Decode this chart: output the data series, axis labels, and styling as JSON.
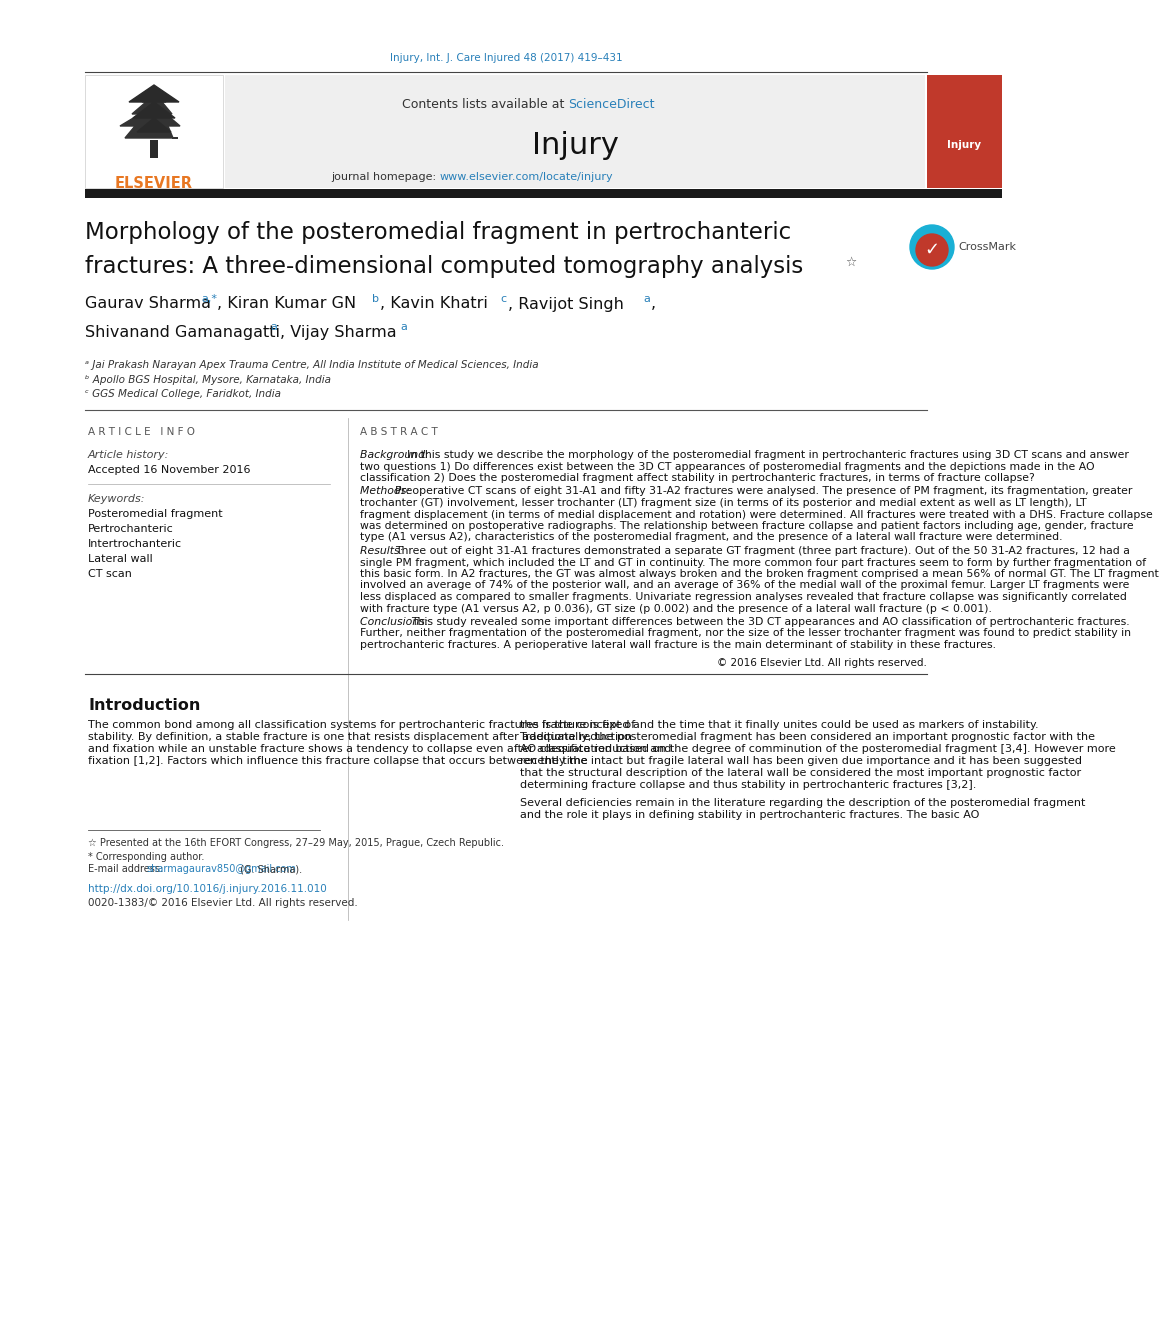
{
  "journal_ref": "Injury, Int. J. Care Injured 48 (2017) 419–431",
  "journal_name": "Injury",
  "contents_text": "Contents lists available at ScienceDirect",
  "title_line1": "Morphology of the posteromedial fragment in pertrochanteric",
  "title_line2": "fractures: A three-dimensional computed tomography analysis",
  "title_star": "☆",
  "affil_a": "ᵃ Jai Prakash Narayan Apex Trauma Centre, All India Institute of Medical Sciences, India",
  "affil_b": "ᵇ Apollo BGS Hospital, Mysore, Karnataka, India",
  "affil_c": "ᶜ GGS Medical College, Faridkot, India",
  "article_info_header": "A R T I C L E   I N F O",
  "abstract_header": "A B S T R A C T",
  "history_label": "Article history:",
  "history_date": "Accepted 16 November 2016",
  "keywords_label": "Keywords:",
  "keywords": [
    "Posteromedial fragment",
    "Pertrochanteric",
    "Intertrochanteric",
    "Lateral wall",
    "CT scan"
  ],
  "abstract_background": "Background: In this study we describe the morphology of the posteromedial fragment in pertrochanteric fractures using 3D CT scans and answer two questions 1) Do differences exist between the 3D CT appearances of posteromedial fragments and the depictions made in the AO classification 2) Does the posteromedial fragment affect stability in pertrochanteric fractures, in terms of fracture collapse?",
  "abstract_methods": "Methods: Preoperative CT scans of eight 31-A1 and fifty 31-A2 fractures were analysed. The presence of PM fragment, its fragmentation, greater trochanter (GT) involvement, lesser trochanter (LT) fragment size (in terms of its posterior and medial extent as well as LT length), LT fragment displacement (in terms of medial displacement and rotation) were determined. All fractures were treated with a DHS. Fracture collapse was determined on postoperative radiographs. The relationship between fracture collapse and patient factors including age, gender, fracture type (A1 versus A2), characteristics of the posteromedial fragment, and the presence of a lateral wall fracture were determined.",
  "abstract_results": "Results: Three out of eight 31-A1 fractures demonstrated a separate GT fragment (three part fracture). Out of the 50 31-A2 fractures, 12 had a single PM fragment, which included the LT and GT in continuity. The more common four part fractures seem to form by further fragmentation of this basic form. In A2 fractures, the GT was almost always broken and the broken fragment comprised a mean 56% of normal GT. The LT fragment involved an average of 74% of the posterior wall, and an average of 36% of the medial wall of the proximal femur. Larger LT fragments were less displaced as compared to smaller fragments. Univariate regression analyses revealed that fracture collapse was significantly correlated with fracture type (A1 versus A2, p 0.036), GT size (p 0.002) and the presence of a lateral wall fracture (p < 0.001).",
  "abstract_conclusions": "Conclusions: This study revealed some important differences between the 3D CT appearances and AO classification of pertrochanteric fractures. Further, neither fragmentation of the posteromedial fragment, nor the size of the lesser trochanter fragment was found to predict stability in pertrochanteric fractures. A perioperative lateral wall fracture is the main determinant of stability in these fractures.",
  "copyright": "© 2016 Elsevier Ltd. All rights reserved.",
  "intro_header": "Introduction",
  "intro_col1": "The common bond among all classification systems for pertrochanteric fractures is the concept of stability. By definition, a stable fracture is one that resists displacement after adequate reduction and fixation while an unstable fracture shows a tendency to collapse even after adequate reduction and fixation [1,2]. Factors which influence this fracture collapse that occurs between the time",
  "intro_col2": "the fracture is fixed and the time that it finally unites could be used as markers of instability. Traditionally, the posteromedial fragment has been considered an important prognostic factor with the AO classification based on the degree of comminution of the posteromedial fragment [3,4]. However more recently the intact but fragile lateral wall has been given due importance and it has been suggested that the structural description of the lateral wall be considered the most important prognostic factor determining fracture collapse and thus stability in pertrochanteric fractures [3,2].",
  "intro_col2b": "Several deficiencies remain in the literature regarding the description of the posteromedial fragment and the role it plays in defining stability in pertrochanteric fractures. The basic AO",
  "footnote1": "☆ Presented at the 16th EFORT Congress, 27–29 May, 2015, Prague, Czech Republic.",
  "footnote2": "* Corresponding author.",
  "footnote3_pre": "E-mail address: ",
  "footnote3_link": "sharmagaurav850@gmail.com",
  "footnote3_post": " (G. Sharma).",
  "doi": "http://dx.doi.org/10.1016/j.injury.2016.11.010",
  "issn": "0020-1383/© 2016 Elsevier Ltd. All rights reserved.",
  "bg_color": "#ffffff",
  "link_color": "#2980b9",
  "orange_color": "#e87722",
  "gray_bg": "#efefef"
}
